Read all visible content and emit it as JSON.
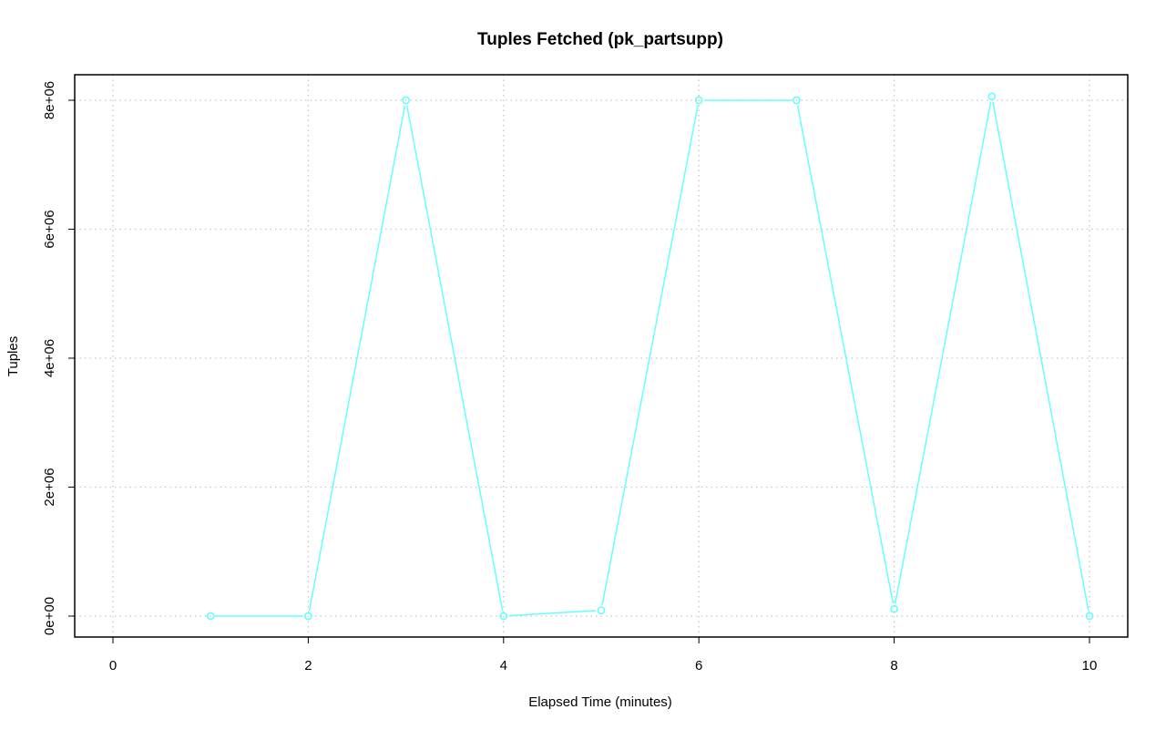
{
  "chart_data": {
    "type": "line",
    "title": "Tuples Fetched (pk_partsupp)",
    "xlabel": "Elapsed Time (minutes)",
    "ylabel": "Tuples",
    "xlim": [
      0,
      10
    ],
    "ylim": [
      0,
      8000000
    ],
    "x_ticks": [
      0,
      2,
      4,
      6,
      8,
      10
    ],
    "x_tick_labels": [
      "0",
      "2",
      "4",
      "6",
      "8",
      "10"
    ],
    "y_ticks": [
      0,
      2000000,
      4000000,
      6000000,
      8000000
    ],
    "y_tick_labels": [
      "0e+00",
      "2e+06",
      "4e+06",
      "6e+06",
      "8e+06"
    ],
    "grid": true,
    "series": [
      {
        "color": "#66ffff",
        "marker": "circle",
        "x": [
          1,
          2,
          3,
          4,
          5,
          6,
          7,
          8,
          9,
          10
        ],
        "y": [
          0,
          0,
          8000000,
          0,
          90000,
          8000000,
          8000000,
          110000,
          8060000,
          0
        ]
      }
    ]
  }
}
